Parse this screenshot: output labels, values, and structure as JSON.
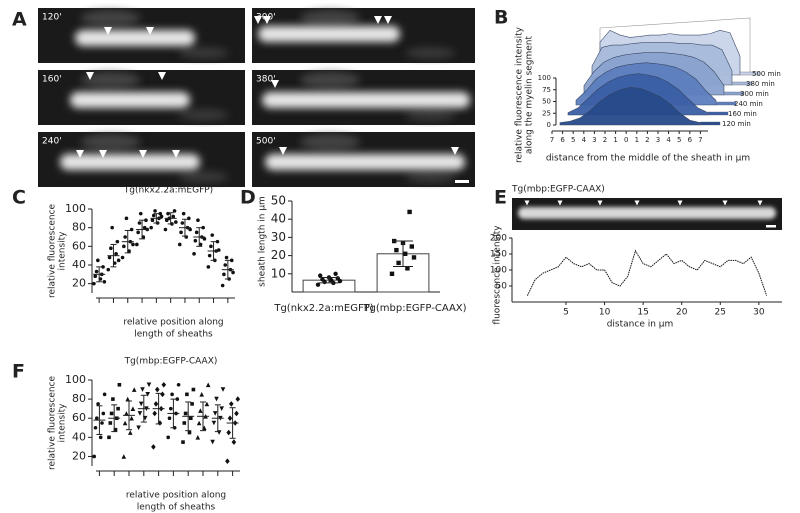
{
  "panel_labels": [
    "A",
    "B",
    "C",
    "D",
    "E",
    "F"
  ],
  "panel_a": {
    "frames": [
      "120'",
      "160'",
      "240'",
      "300'",
      "380'",
      "500'"
    ]
  },
  "chart_data": [
    {
      "type": "waterfall",
      "ylabel": [
        "relative fluorescence intensity",
        "along the myelin segment"
      ],
      "xlabel": "distance from the middle of the sheath in µm",
      "x": [
        -7,
        -6,
        -5,
        -4,
        -3,
        -2,
        -1,
        0,
        1,
        2,
        3,
        4,
        5,
        6,
        7
      ],
      "xlim": [
        -7,
        7
      ],
      "xticks": [
        {
          "value": -7,
          "label": "7"
        },
        {
          "value": -6,
          "label": "6"
        },
        {
          "value": -5,
          "label": "5"
        },
        {
          "value": -4,
          "label": "4"
        },
        {
          "value": -3,
          "label": "3"
        },
        {
          "value": -2,
          "label": "2"
        },
        {
          "value": -1,
          "label": "1"
        },
        0,
        1,
        2,
        3,
        4,
        5,
        6,
        7
      ],
      "ylim": [
        0,
        100
      ],
      "yticks": [
        0,
        25,
        50,
        75,
        100
      ],
      "series": [
        {
          "name": "500 min",
          "color": "#c9d4ea",
          "values": [
            70,
            95,
            85,
            80,
            82,
            85,
            85,
            88,
            85,
            85,
            85,
            88,
            95,
            90,
            40
          ]
        },
        {
          "name": "380 min",
          "color": "#a9bbdc",
          "values": [
            40,
            80,
            85,
            85,
            88,
            90,
            90,
            90,
            90,
            88,
            88,
            85,
            85,
            75,
            30
          ]
        },
        {
          "name": "300 min",
          "color": "#8aa2cf",
          "values": [
            20,
            50,
            70,
            80,
            85,
            88,
            90,
            90,
            90,
            88,
            85,
            80,
            70,
            50,
            20
          ]
        },
        {
          "name": "240 min",
          "color": "#5d7fbf",
          "values": [
            10,
            30,
            55,
            70,
            80,
            85,
            88,
            90,
            88,
            85,
            80,
            70,
            55,
            30,
            10
          ]
        },
        {
          "name": "160 min",
          "color": "#3b5fa5",
          "values": [
            5,
            15,
            35,
            55,
            70,
            80,
            85,
            88,
            85,
            80,
            70,
            55,
            35,
            15,
            5
          ]
        },
        {
          "name": "120 min",
          "color": "#264a8a",
          "values": [
            5,
            8,
            15,
            30,
            50,
            65,
            75,
            80,
            78,
            70,
            60,
            45,
            25,
            10,
            5
          ]
        }
      ]
    },
    {
      "type": "column-scatter",
      "title": "Tg(nkx2.2a:mEGFP)",
      "ylabel": [
        "relative fluorescence",
        "intensity"
      ],
      "xlabel": [
        "relative position along",
        "length of sheaths"
      ],
      "categories": [
        null,
        null,
        null,
        null,
        null,
        null,
        null,
        null,
        null,
        null
      ],
      "ylim": [
        10,
        100
      ],
      "yticks": [
        20,
        40,
        60,
        80,
        100
      ],
      "markers": [
        "circle",
        "circle",
        "circle",
        "circle",
        "circle",
        "circle",
        "circle",
        "circle",
        "circle",
        "circle"
      ],
      "points": [
        [
          20,
          25,
          28,
          30,
          33,
          38,
          45,
          22
        ],
        [
          35,
          42,
          48,
          52,
          58,
          65,
          80,
          45
        ],
        [
          48,
          55,
          60,
          65,
          70,
          78,
          90,
          62
        ],
        [
          62,
          70,
          75,
          80,
          85,
          88,
          95,
          78
        ],
        [
          80,
          85,
          88,
          90,
          93,
          95,
          98,
          92
        ],
        [
          78,
          84,
          88,
          92,
          95,
          98,
          90,
          86
        ],
        [
          62,
          70,
          75,
          80,
          85,
          90,
          95,
          78
        ],
        [
          52,
          62,
          66,
          70,
          75,
          80,
          88,
          68
        ],
        [
          38,
          45,
          50,
          55,
          60,
          65,
          72,
          56
        ],
        [
          18,
          25,
          30,
          35,
          40,
          45,
          48,
          32
        ]
      ],
      "means": [
        30,
        50,
        65,
        78,
        90,
        90,
        80,
        70,
        55,
        35
      ],
      "sd": [
        8,
        12,
        12,
        10,
        5,
        6,
        9,
        10,
        10,
        10
      ]
    },
    {
      "type": "bar",
      "ylabel": "sheath length in µm",
      "categories": [
        "Tg(nkx2.2a:mEGFP)",
        "Tg(mbp:EGFP-CAAX)"
      ],
      "values": [
        6.5,
        21
      ],
      "sd": [
        1.5,
        7
      ],
      "markers": [
        "circle",
        "square"
      ],
      "points": [
        [
          4,
          5,
          5.5,
          6,
          6.5,
          7,
          7.5,
          8,
          9,
          10
        ],
        [
          10,
          13,
          16,
          19,
          21,
          23,
          25,
          27,
          28,
          44
        ]
      ],
      "ylim": [
        0,
        50
      ],
      "yticks": [
        10,
        20,
        30,
        40,
        50
      ]
    },
    {
      "type": "line",
      "title": "Tg(mbp:EGFP-CAAX)",
      "ylabel": "fluorescence intensity",
      "xlabel": "distance in µm",
      "x": [
        0,
        1,
        2,
        3,
        4,
        5,
        6,
        7,
        8,
        9,
        10,
        11,
        12,
        13,
        14,
        15,
        16,
        17,
        18,
        19,
        20,
        21,
        22,
        23,
        24,
        25,
        26,
        27,
        28,
        29,
        30,
        31
      ],
      "values": [
        20,
        70,
        90,
        100,
        110,
        140,
        120,
        110,
        120,
        100,
        100,
        60,
        50,
        80,
        160,
        120,
        110,
        130,
        150,
        120,
        130,
        110,
        100,
        130,
        120,
        110,
        130,
        130,
        120,
        140,
        90,
        20
      ],
      "xlim": [
        -2,
        33
      ],
      "ylim": [
        0,
        200
      ],
      "xticks": [
        5,
        10,
        15,
        20,
        25,
        30
      ],
      "yticks": [
        50,
        100,
        150,
        200
      ]
    },
    {
      "type": "column-scatter",
      "title": "Tg(mbp:EGFP-CAAX)",
      "ylabel": [
        "relative fluorescence",
        "intensity"
      ],
      "xlabel": [
        "relative position along",
        "length of sheaths"
      ],
      "categories": [
        null,
        null,
        null,
        null,
        null,
        null,
        null,
        null,
        null,
        null
      ],
      "ylim": [
        10,
        100
      ],
      "yticks": [
        20,
        40,
        60,
        80,
        100
      ],
      "markers": [
        "circle",
        "square",
        "triangle",
        "triangle-down",
        "diamond",
        "circle",
        "square",
        "triangle",
        "triangle-down",
        "diamond"
      ],
      "points": [
        [
          20,
          40,
          50,
          55,
          60,
          65,
          75,
          85
        ],
        [
          40,
          48,
          55,
          60,
          65,
          70,
          80,
          95
        ],
        [
          20,
          45,
          55,
          60,
          65,
          70,
          80,
          90
        ],
        [
          50,
          60,
          65,
          70,
          75,
          85,
          90,
          95
        ],
        [
          30,
          55,
          65,
          70,
          75,
          85,
          90,
          95
        ],
        [
          40,
          50,
          60,
          65,
          70,
          80,
          85,
          95
        ],
        [
          35,
          45,
          55,
          60,
          65,
          75,
          85,
          90
        ],
        [
          40,
          50,
          55,
          62,
          68,
          75,
          85,
          95
        ],
        [
          35,
          45,
          55,
          60,
          65,
          70,
          80,
          90
        ],
        [
          15,
          35,
          45,
          55,
          60,
          65,
          75,
          80
        ]
      ],
      "means": [
        58,
        60,
        63,
        70,
        70,
        65,
        62,
        62,
        60,
        55
      ],
      "sd": [
        15,
        14,
        15,
        14,
        16,
        15,
        15,
        15,
        14,
        16
      ]
    }
  ]
}
